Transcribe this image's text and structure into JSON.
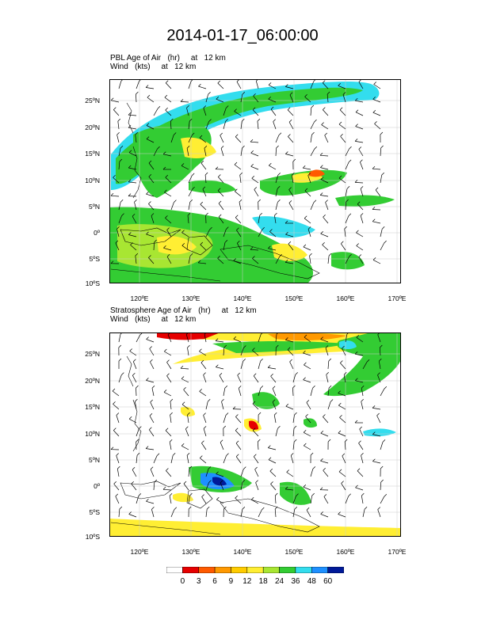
{
  "title": "2014-01-17_06:00:00",
  "panel_top": {
    "line1": "PBL Age of Air   (hr)     at   12 km",
    "line2": "Wind   (kts)     at   12 km"
  },
  "panel_bottom": {
    "line1": "Stratosphere Age of Air   (hr)     at   12 km",
    "line2": "Wind   (kts)     at   12 km"
  },
  "lat_labels": [
    "25ºN",
    "20ºN",
    "15ºN",
    "10ºN",
    "5ºN",
    "0º",
    "5ºS",
    "10ºS"
  ],
  "lon_labels": [
    "120ºE",
    "130ºE",
    "140ºE",
    "150ºE",
    "160ºE",
    "170ºE"
  ],
  "colorbar": {
    "labels": [
      "0",
      "3",
      "6",
      "9",
      "12",
      "18",
      "24",
      "36",
      "48",
      "60"
    ],
    "colors": [
      "#ffffff",
      "#e60000",
      "#ff5a00",
      "#ff9900",
      "#ffcc00",
      "#ffee33",
      "#a8e632",
      "#33cc33",
      "#33ddee",
      "#1e90ff",
      "#001a99"
    ]
  }
}
